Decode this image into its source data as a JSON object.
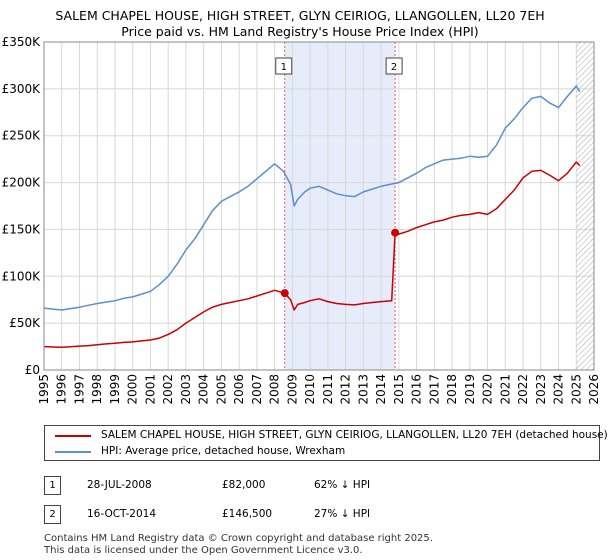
{
  "title_line1": "SALEM CHAPEL HOUSE, HIGH STREET, GLYN CEIRIOG, LLANGOLLEN, LL20 7EH",
  "title_line2": "Price paid vs. HM Land Registry's House Price Index (HPI)",
  "legend": {
    "series1": "SALEM CHAPEL HOUSE, HIGH STREET, GLYN CEIRIOG, LLANGOLLEN, LL20 7EH (detached house)",
    "series2": "HPI: Average price, detached house, Wrexham"
  },
  "transactions": [
    {
      "num": "1",
      "date": "28-JUL-2008",
      "price": "£82,000",
      "delta": "62% ↓ HPI"
    },
    {
      "num": "2",
      "date": "16-OCT-2014",
      "price": "£146,500",
      "delta": "27% ↓ HPI"
    }
  ],
  "footer_line1": "Contains HM Land Registry data © Crown copyright and database right 2025.",
  "footer_line2": "This data is licensed under the Open Government Licence v3.0.",
  "colors": {
    "property": "#cc0000",
    "hpi": "#5b8fd0",
    "shade": "#e6ecfa",
    "grid": "#d8d8d8"
  },
  "chart_data": {
    "type": "line",
    "xlim": [
      1995,
      2026
    ],
    "ylim": [
      0,
      350000
    ],
    "yticks": [
      0,
      50000,
      100000,
      150000,
      200000,
      250000,
      300000,
      350000
    ],
    "ytick_labels": [
      "£0",
      "£50K",
      "£100K",
      "£150K",
      "£200K",
      "£250K",
      "£300K",
      "£350K"
    ],
    "xticks": [
      1995,
      1996,
      1997,
      1998,
      1999,
      2000,
      2001,
      2002,
      2003,
      2004,
      2005,
      2006,
      2007,
      2008,
      2009,
      2010,
      2011,
      2012,
      2013,
      2014,
      2015,
      2016,
      2017,
      2018,
      2019,
      2020,
      2021,
      2022,
      2023,
      2024,
      2025,
      2026
    ],
    "xtick_labels": [
      "1995",
      "1996",
      "1997",
      "1998",
      "1999",
      "2000",
      "2001",
      "2002",
      "2003",
      "2004",
      "2005",
      "2006",
      "2007",
      "2008",
      "2009",
      "2010",
      "2011",
      "2012",
      "2013",
      "2014",
      "2015",
      "2016",
      "2017",
      "2018",
      "2019",
      "2020",
      "2021",
      "2022",
      "2023",
      "2024",
      "2025",
      "2026"
    ],
    "shaded_range": [
      2008.57,
      2014.79
    ],
    "future_hatch_from": 2025.0,
    "markers": [
      {
        "label": "1",
        "x": 2008.57,
        "y": 82000
      },
      {
        "label": "2",
        "x": 2014.79,
        "y": 146500
      }
    ],
    "series": [
      {
        "name": "SALEM CHAPEL HOUSE, HIGH STREET, GLYN CEIRIOG, LLANGOLLEN, LL20 7EH (detached house)",
        "points": [
          [
            1995.0,
            25000
          ],
          [
            1995.5,
            24500
          ],
          [
            1996.0,
            24200
          ],
          [
            1996.5,
            24800
          ],
          [
            1997.0,
            25500
          ],
          [
            1997.5,
            26000
          ],
          [
            1998.0,
            27000
          ],
          [
            1998.5,
            27800
          ],
          [
            1999.0,
            28500
          ],
          [
            1999.5,
            29500
          ],
          [
            2000.0,
            30000
          ],
          [
            2000.5,
            31000
          ],
          [
            2001.0,
            32000
          ],
          [
            2001.5,
            34000
          ],
          [
            2002.0,
            38000
          ],
          [
            2002.5,
            43000
          ],
          [
            2003.0,
            50000
          ],
          [
            2003.5,
            56000
          ],
          [
            2004.0,
            62000
          ],
          [
            2004.5,
            67000
          ],
          [
            2005.0,
            70000
          ],
          [
            2005.5,
            72000
          ],
          [
            2006.0,
            74000
          ],
          [
            2006.5,
            76000
          ],
          [
            2007.0,
            79000
          ],
          [
            2007.5,
            82000
          ],
          [
            2008.0,
            85000
          ],
          [
            2008.57,
            82000
          ],
          [
            2008.9,
            75000
          ],
          [
            2009.1,
            64000
          ],
          [
            2009.3,
            70000
          ],
          [
            2009.7,
            72000
          ],
          [
            2010.0,
            74000
          ],
          [
            2010.5,
            76000
          ],
          [
            2011.0,
            73000
          ],
          [
            2011.5,
            71000
          ],
          [
            2012.0,
            70000
          ],
          [
            2012.5,
            69500
          ],
          [
            2013.0,
            71000
          ],
          [
            2013.5,
            72000
          ],
          [
            2014.0,
            73000
          ],
          [
            2014.6,
            74000
          ],
          [
            2014.79,
            146500
          ],
          [
            2015.0,
            145000
          ],
          [
            2015.5,
            148000
          ],
          [
            2016.0,
            152000
          ],
          [
            2016.5,
            155000
          ],
          [
            2017.0,
            158000
          ],
          [
            2017.5,
            160000
          ],
          [
            2018.0,
            163000
          ],
          [
            2018.5,
            165000
          ],
          [
            2019.0,
            166000
          ],
          [
            2019.5,
            168000
          ],
          [
            2020.0,
            166000
          ],
          [
            2020.5,
            172000
          ],
          [
            2021.0,
            182000
          ],
          [
            2021.5,
            192000
          ],
          [
            2022.0,
            205000
          ],
          [
            2022.5,
            212000
          ],
          [
            2023.0,
            213000
          ],
          [
            2023.5,
            208000
          ],
          [
            2024.0,
            202000
          ],
          [
            2024.5,
            210000
          ],
          [
            2025.0,
            222000
          ],
          [
            2025.2,
            218000
          ]
        ]
      },
      {
        "name": "HPI: Average price, detached house, Wrexham",
        "points": [
          [
            1995.0,
            66000
          ],
          [
            1995.5,
            65000
          ],
          [
            1996.0,
            64000
          ],
          [
            1996.5,
            65500
          ],
          [
            1997.0,
            67000
          ],
          [
            1997.5,
            69000
          ],
          [
            1998.0,
            71000
          ],
          [
            1998.5,
            72500
          ],
          [
            1999.0,
            74000
          ],
          [
            1999.5,
            76500
          ],
          [
            2000.0,
            78000
          ],
          [
            2000.5,
            81000
          ],
          [
            2001.0,
            84000
          ],
          [
            2001.5,
            91000
          ],
          [
            2002.0,
            100000
          ],
          [
            2002.5,
            113000
          ],
          [
            2003.0,
            128000
          ],
          [
            2003.5,
            140000
          ],
          [
            2004.0,
            155000
          ],
          [
            2004.5,
            170000
          ],
          [
            2005.0,
            180000
          ],
          [
            2005.5,
            185000
          ],
          [
            2006.0,
            190000
          ],
          [
            2006.5,
            196000
          ],
          [
            2007.0,
            204000
          ],
          [
            2007.5,
            212000
          ],
          [
            2008.0,
            220000
          ],
          [
            2008.5,
            212000
          ],
          [
            2008.9,
            198000
          ],
          [
            2009.1,
            175000
          ],
          [
            2009.3,
            182000
          ],
          [
            2009.7,
            190000
          ],
          [
            2010.0,
            194000
          ],
          [
            2010.5,
            196000
          ],
          [
            2011.0,
            192000
          ],
          [
            2011.5,
            188000
          ],
          [
            2012.0,
            186000
          ],
          [
            2012.5,
            185000
          ],
          [
            2013.0,
            190000
          ],
          [
            2013.5,
            193000
          ],
          [
            2014.0,
            196000
          ],
          [
            2014.5,
            198000
          ],
          [
            2015.0,
            200000
          ],
          [
            2015.5,
            205000
          ],
          [
            2016.0,
            210000
          ],
          [
            2016.5,
            216000
          ],
          [
            2017.0,
            220000
          ],
          [
            2017.5,
            224000
          ],
          [
            2018.0,
            225000
          ],
          [
            2018.5,
            226000
          ],
          [
            2019.0,
            228000
          ],
          [
            2019.5,
            227000
          ],
          [
            2020.0,
            228000
          ],
          [
            2020.5,
            240000
          ],
          [
            2021.0,
            258000
          ],
          [
            2021.5,
            268000
          ],
          [
            2022.0,
            280000
          ],
          [
            2022.5,
            290000
          ],
          [
            2023.0,
            292000
          ],
          [
            2023.5,
            285000
          ],
          [
            2024.0,
            280000
          ],
          [
            2024.5,
            292000
          ],
          [
            2025.0,
            303000
          ],
          [
            2025.2,
            297000
          ]
        ]
      }
    ]
  }
}
